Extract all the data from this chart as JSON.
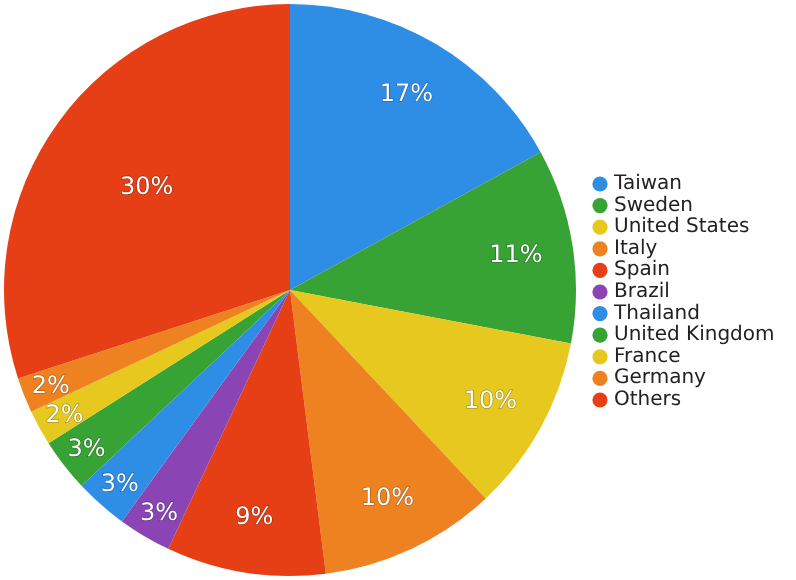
{
  "chart_data": {
    "type": "pie",
    "categories": [
      "Taiwan",
      "Sweden",
      "United States",
      "Italy",
      "Spain",
      "Brazil",
      "Thailand",
      "United Kingdom",
      "France",
      "Germany",
      "Others"
    ],
    "values": [
      17,
      11,
      10,
      10,
      9,
      3,
      3,
      3,
      2,
      2,
      30
    ],
    "colors": [
      "#2e8ee6",
      "#38a335",
      "#e6c81e",
      "#ee8220",
      "#e63f16",
      "#8a44b4",
      "#2e8ee6",
      "#38a335",
      "#e6c81e",
      "#ee8220",
      "#e63f16"
    ],
    "value_labels": [
      "17%",
      "11%",
      "10%",
      "10%",
      "9%",
      "3%",
      "3%",
      "3%",
      "2%",
      "2%",
      "30%"
    ],
    "legend": "right"
  }
}
